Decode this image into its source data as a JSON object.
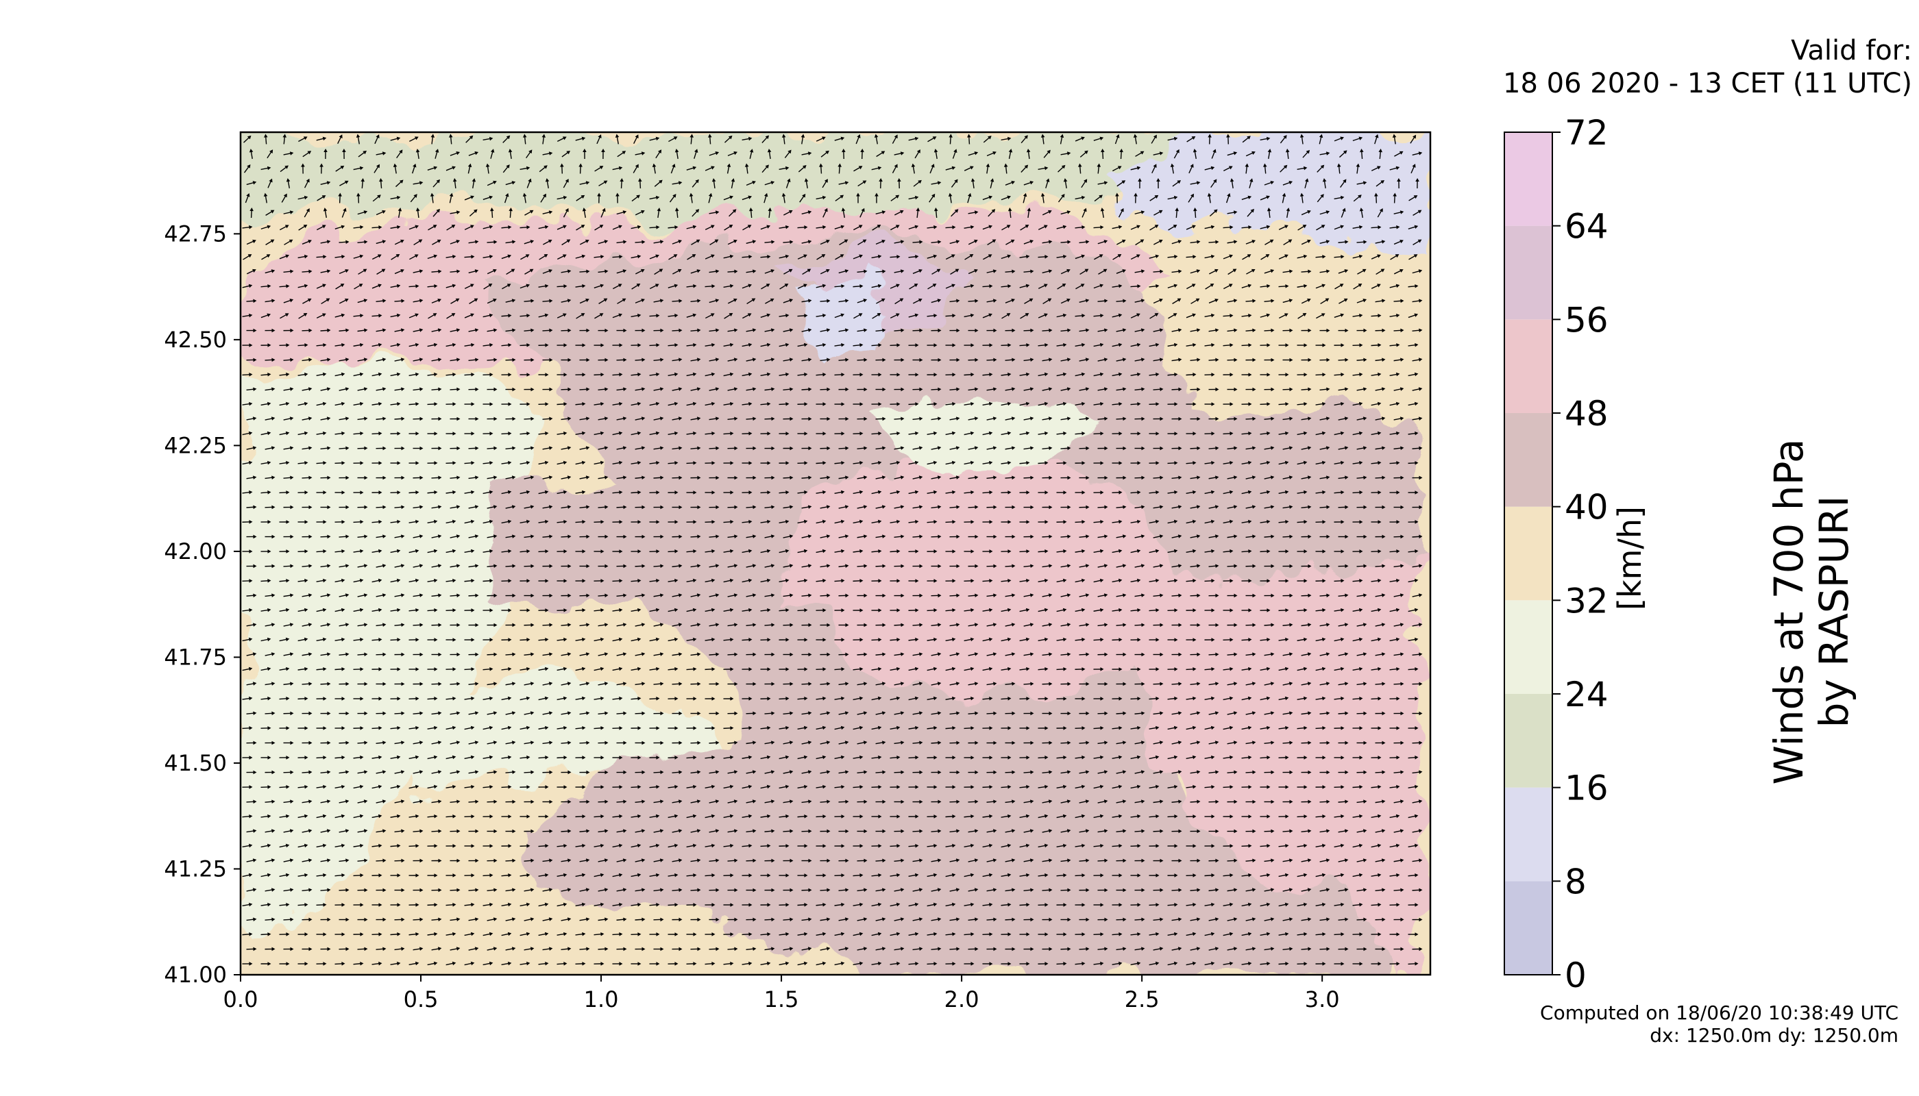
{
  "header": {
    "valid_label": "Valid for:",
    "valid_time": "18 06 2020 - 13 CET (11 UTC)"
  },
  "footer": {
    "computed": "Computed on 18/06/20 10:38:49 UTC",
    "resolution": "dx: 1250.0m dy: 1250.0m"
  },
  "chart_data": {
    "type": "heatmap",
    "title": "Winds at 700 hPa by RASPURI",
    "title_lines": [
      "Winds at 700 hPa",
      "by RASPURI"
    ],
    "xlabel": "",
    "ylabel": "",
    "xlim": [
      0.0,
      3.3
    ],
    "ylim": [
      41.0,
      42.99
    ],
    "x_ticks": [
      0.0,
      0.5,
      1.0,
      1.5,
      2.0,
      2.5,
      3.0
    ],
    "x_tick_labels": [
      "0.0",
      "0.5",
      "1.0",
      "1.5",
      "2.0",
      "2.5",
      "3.0"
    ],
    "y_ticks": [
      41.0,
      41.25,
      41.5,
      41.75,
      42.0,
      42.25,
      42.5,
      42.75
    ],
    "y_tick_labels": [
      "41.00",
      "41.25",
      "41.50",
      "41.75",
      "42.00",
      "42.25",
      "42.50",
      "42.75"
    ],
    "colorbar": {
      "unit": "[km/h]",
      "levels": [
        0,
        8,
        16,
        24,
        32,
        40,
        48,
        56,
        64,
        72
      ],
      "level_labels": [
        "0",
        "8",
        "16",
        "24",
        "32",
        "40",
        "48",
        "56",
        "64",
        "72"
      ],
      "colors": [
        "#c8c8e1",
        "#dcdcef",
        "#dae0c7",
        "#eef2e0",
        "#f3e3c2",
        "#d8bfbf",
        "#edc6cb",
        "#dcc2d4",
        "#ebc9e4"
      ]
    },
    "field_description": "Wind speed filled contours with black wind-direction arrows, mostly from the west/southwest at about 32-56 km/h",
    "vectors": {
      "predominant_direction": "westerly",
      "color": "#000000"
    }
  }
}
